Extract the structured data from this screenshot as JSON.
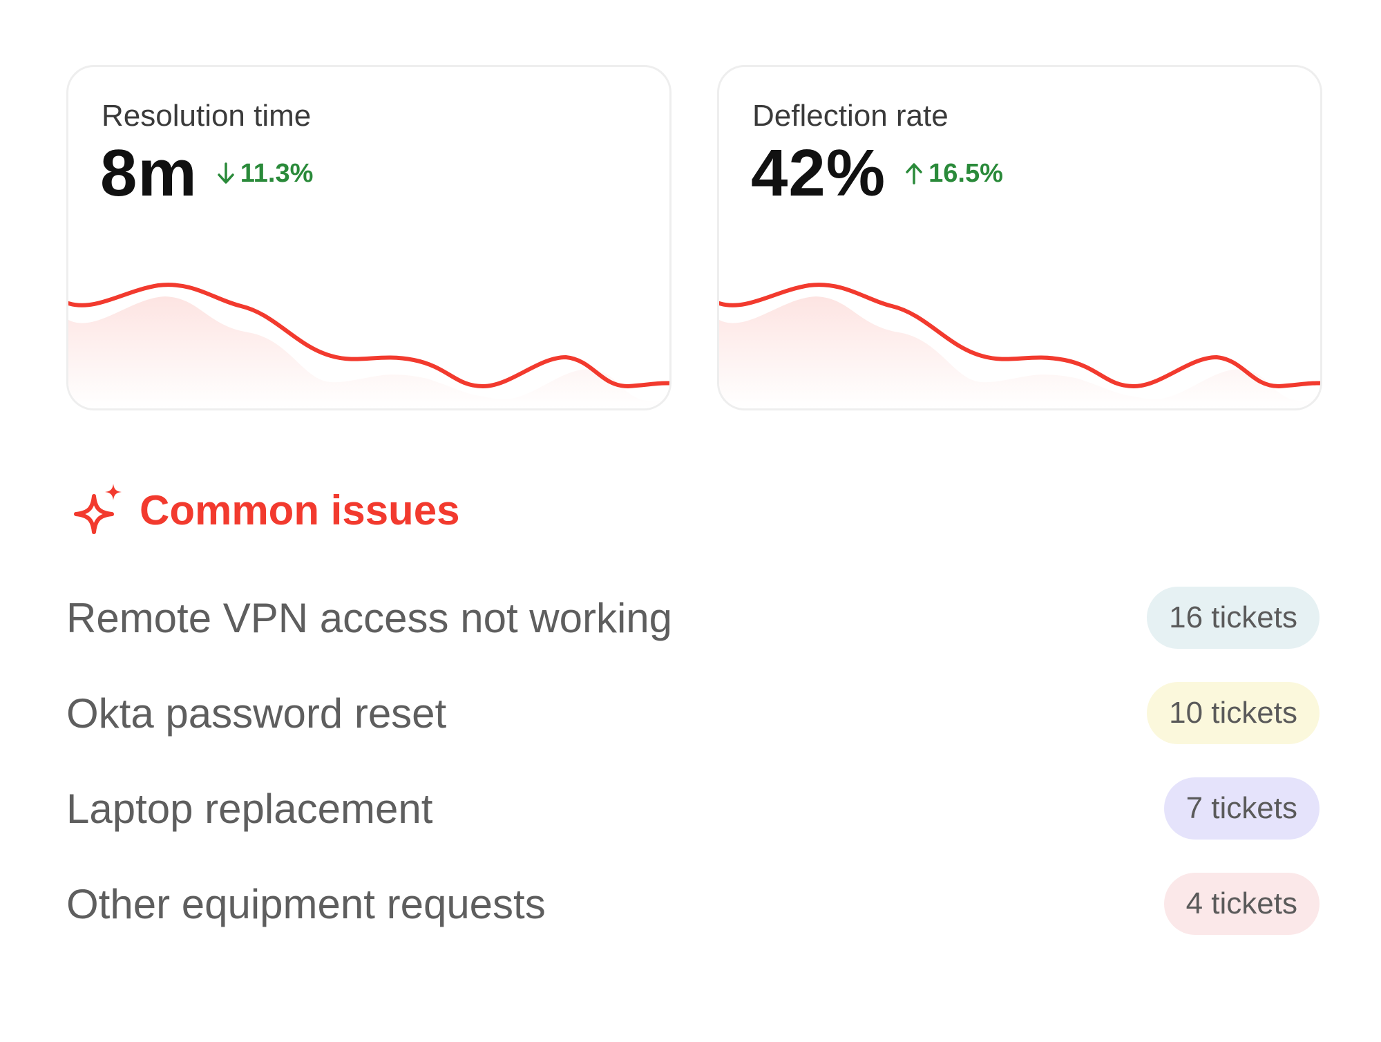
{
  "metrics": [
    {
      "title": "Resolution time",
      "value": "8m",
      "delta": "11.3%",
      "delta_direction": "down",
      "delta_color": "#2a8a3a",
      "line_color": "#f23a2e"
    },
    {
      "title": "Deflection rate",
      "value": "42%",
      "delta": "16.5%",
      "delta_direction": "up",
      "delta_color": "#2a8a3a",
      "line_color": "#f23a2e"
    }
  ],
  "common_issues": {
    "title": "Common issues",
    "icon": "sparkle-icon",
    "accent_color": "#f23a2e",
    "items": [
      {
        "label": "Remote VPN access not working",
        "badge": "16 tickets",
        "badge_color": "#e6f1f3"
      },
      {
        "label": "Okta password reset",
        "badge": "10 tickets",
        "badge_color": "#fbf8dc"
      },
      {
        "label": "Laptop replacement",
        "badge": "7 tickets",
        "badge_color": "#e5e3fb"
      },
      {
        "label": "Other equipment requests",
        "badge": "4 tickets",
        "badge_color": "#fbe8e9"
      }
    ]
  }
}
